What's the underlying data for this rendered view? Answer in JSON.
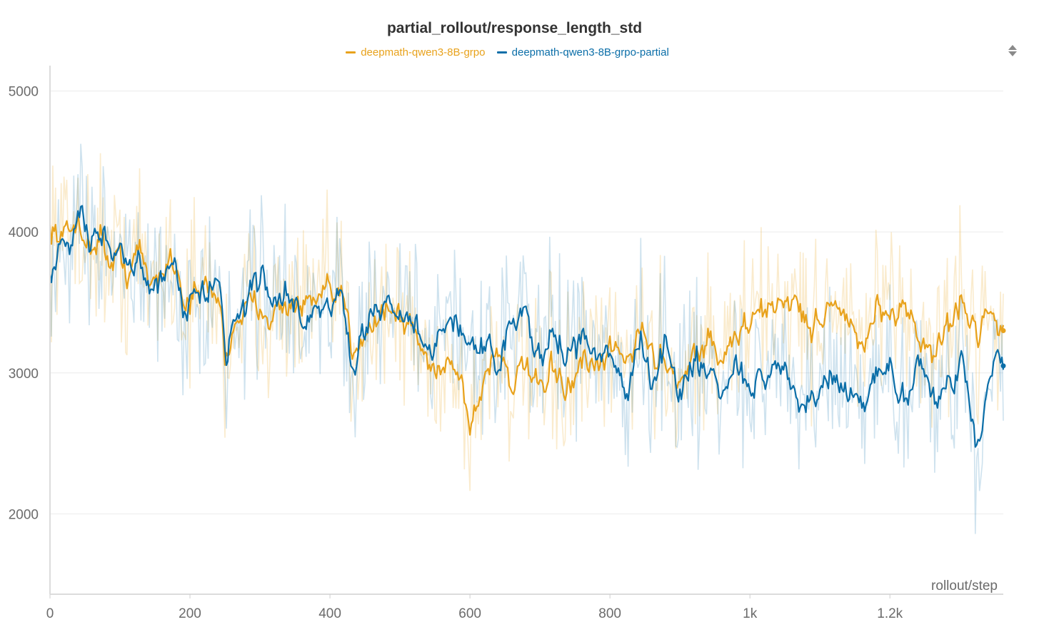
{
  "panel": {
    "sort_icon": "sort-arrows-icon"
  },
  "chart_data": {
    "type": "line",
    "title": "partial_rollout/response_length_std",
    "xlabel": "rollout/step",
    "ylabel": "",
    "xlim": [
      0,
      1362
    ],
    "ylim": [
      1430,
      5180
    ],
    "x_ticks": [
      0,
      200,
      400,
      600,
      800,
      1000,
      1200
    ],
    "x_tick_labels": [
      "0",
      "200",
      "400",
      "600",
      "800",
      "1k",
      "1.2k"
    ],
    "y_ticks": [
      2000,
      3000,
      4000,
      5000
    ],
    "y_tick_labels": [
      "2000",
      "3000",
      "4000",
      "5000"
    ],
    "grid": true,
    "legend_position": "top",
    "raw_noise_amplitude": 650,
    "series": [
      {
        "name": "deepmath-qwen3-8B-grpo",
        "color": "#e8a21c",
        "x": [
          0,
          15,
          30,
          40,
          55,
          70,
          85,
          100,
          110,
          125,
          140,
          160,
          175,
          190,
          205,
          220,
          240,
          250,
          260,
          280,
          300,
          320,
          340,
          360,
          380,
          400,
          420,
          430,
          440,
          460,
          480,
          500,
          520,
          540,
          560,
          580,
          600,
          620,
          640,
          660,
          680,
          700,
          720,
          740,
          760,
          780,
          800,
          820,
          840,
          860,
          880,
          900,
          920,
          940,
          960,
          980,
          1000,
          1020,
          1040,
          1060,
          1080,
          1100,
          1120,
          1140,
          1160,
          1180,
          1200,
          1220,
          1240,
          1260,
          1280,
          1300,
          1320,
          1340,
          1350,
          1362
        ],
        "y": [
          4050,
          3950,
          4000,
          4150,
          3800,
          4050,
          3700,
          3850,
          3700,
          3900,
          3600,
          3750,
          3850,
          3500,
          3550,
          3600,
          3550,
          3000,
          3400,
          3450,
          3500,
          3400,
          3500,
          3450,
          3500,
          3550,
          3500,
          3100,
          3300,
          3350,
          3500,
          3350,
          3300,
          3000,
          3100,
          3050,
          2600,
          3000,
          3200,
          2900,
          3050,
          2800,
          3050,
          2850,
          3100,
          2950,
          3200,
          3050,
          3350,
          3100,
          3100,
          2950,
          3150,
          3250,
          3050,
          3300,
          3350,
          3450,
          3500,
          3550,
          3300,
          3400,
          3550,
          3300,
          3150,
          3500,
          3250,
          3550,
          3250,
          3100,
          3350,
          3500,
          3300,
          3450,
          3400,
          3300
        ]
      },
      {
        "name": "deepmath-qwen3-8B-grpo-partial",
        "color": "#0b6ea8",
        "x": [
          0,
          15,
          30,
          40,
          55,
          70,
          85,
          100,
          110,
          125,
          140,
          160,
          175,
          190,
          205,
          220,
          240,
          250,
          260,
          280,
          300,
          320,
          340,
          360,
          380,
          400,
          420,
          430,
          440,
          460,
          480,
          500,
          520,
          540,
          560,
          580,
          600,
          620,
          640,
          660,
          680,
          700,
          720,
          740,
          760,
          780,
          800,
          820,
          840,
          860,
          880,
          900,
          920,
          940,
          960,
          980,
          1000,
          1020,
          1040,
          1060,
          1080,
          1100,
          1120,
          1140,
          1160,
          1180,
          1200,
          1220,
          1240,
          1260,
          1280,
          1300,
          1320,
          1340,
          1350,
          1362
        ],
        "y": [
          3700,
          4000,
          3950,
          4150,
          3900,
          4100,
          3800,
          3950,
          3650,
          3900,
          3500,
          3700,
          3900,
          3450,
          3600,
          3650,
          3700,
          3000,
          3450,
          3500,
          3700,
          3450,
          3600,
          3350,
          3450,
          3500,
          3450,
          2950,
          3300,
          3400,
          3550,
          3300,
          3300,
          3150,
          3300,
          3350,
          3200,
          3250,
          3000,
          3450,
          3350,
          3050,
          3250,
          3100,
          3250,
          3100,
          3150,
          2850,
          3250,
          2900,
          3250,
          2800,
          3150,
          3000,
          2850,
          3050,
          2900,
          2950,
          3050,
          2850,
          2700,
          2900,
          2950,
          2800,
          2750,
          3050,
          3000,
          2800,
          3100,
          2800,
          2900,
          3100,
          2450,
          3050,
          3100,
          3050
        ]
      }
    ]
  }
}
